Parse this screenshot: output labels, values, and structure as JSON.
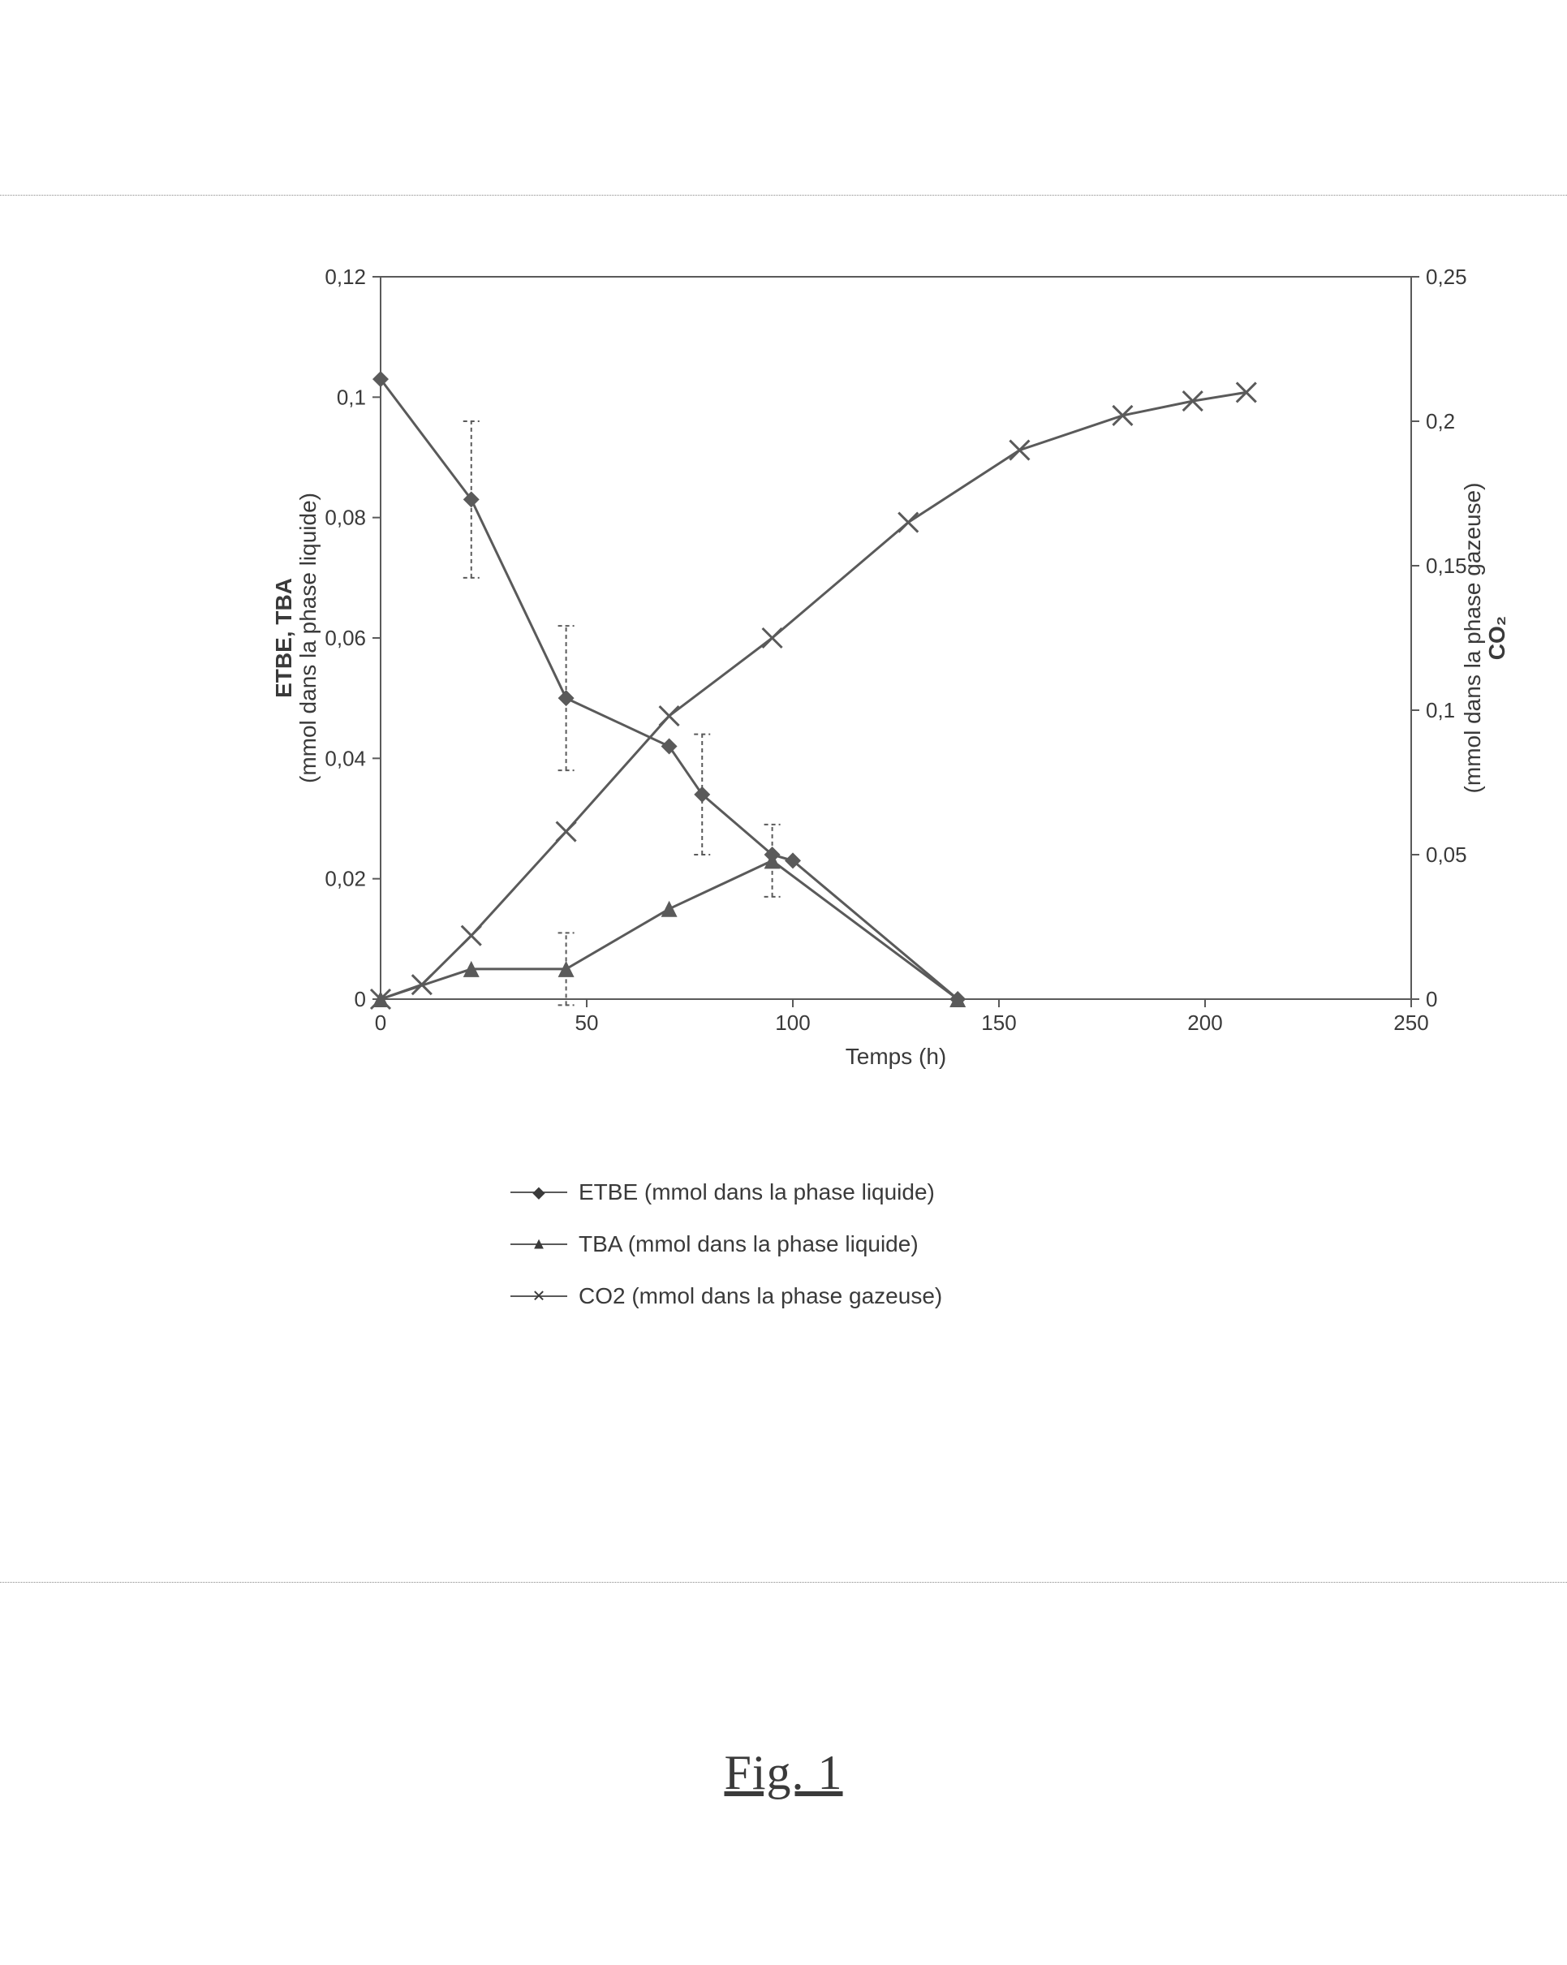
{
  "figure_caption": {
    "text": "Fig. 1"
  },
  "chart": {
    "type": "line-dual-axis",
    "background_color": "#ffffff",
    "border_style": "dotted",
    "border_color": "#888888",
    "font_family": "Arial",
    "axis_color": "#5a5a5a",
    "x": {
      "label": "Temps (h)",
      "min": 0,
      "max": 250,
      "ticks": [
        0,
        50,
        100,
        150,
        200,
        250
      ],
      "label_fontsize": 28,
      "tick_fontsize": 26
    },
    "y_left": {
      "label_line1": "ETBE, TBA",
      "label_line2": "(mmol dans la phase liquide)",
      "min": 0,
      "max": 0.12,
      "ticks": [
        0,
        0.02,
        0.04,
        0.06,
        0.08,
        0.1,
        0.12
      ],
      "tick_labels": [
        "0",
        "0,02",
        "0,04",
        "0,06",
        "0,08",
        "0,1",
        "0,12"
      ],
      "label_fontsize": 28,
      "tick_fontsize": 26
    },
    "y_right": {
      "label_line1": "CO₂",
      "label_line2": "(mmol dans la phase gazeuse)",
      "min": 0,
      "max": 0.25,
      "ticks": [
        0,
        0.05,
        0.1,
        0.15,
        0.2,
        0.25
      ],
      "tick_labels": [
        "0",
        "0,05",
        "0,1",
        "0,15",
        "0,2",
        "0,25"
      ],
      "label_fontsize": 28,
      "tick_fontsize": 26
    },
    "series": [
      {
        "id": "etbe",
        "name": "ETBE (mmol dans la phase liquide)",
        "axis": "left",
        "color": "#5a5a5a",
        "marker": "diamond",
        "marker_size": 10,
        "line_width": 3,
        "data": [
          {
            "x": 0,
            "y": 0.103
          },
          {
            "x": 22,
            "y": 0.083,
            "err": 0.013
          },
          {
            "x": 45,
            "y": 0.05,
            "err": 0.012
          },
          {
            "x": 70,
            "y": 0.042
          },
          {
            "x": 78,
            "y": 0.034,
            "err": 0.01
          },
          {
            "x": 95,
            "y": 0.024
          },
          {
            "x": 100,
            "y": 0.023
          },
          {
            "x": 140,
            "y": 0.0
          }
        ]
      },
      {
        "id": "tba",
        "name": "TBA (mmol dans la phase liquide)",
        "axis": "left",
        "color": "#5a5a5a",
        "marker": "triangle",
        "marker_size": 10,
        "line_width": 3,
        "data": [
          {
            "x": 0,
            "y": 0.0
          },
          {
            "x": 22,
            "y": 0.005
          },
          {
            "x": 45,
            "y": 0.005,
            "err": 0.006
          },
          {
            "x": 70,
            "y": 0.015
          },
          {
            "x": 95,
            "y": 0.023,
            "err": 0.006
          },
          {
            "x": 140,
            "y": 0.0
          }
        ]
      },
      {
        "id": "co2",
        "name": "CO2 (mmol dans la phase gazeuse)",
        "axis": "right",
        "color": "#5a5a5a",
        "marker": "x",
        "marker_size": 12,
        "line_width": 3,
        "data": [
          {
            "x": 0,
            "y": 0.0
          },
          {
            "x": 10,
            "y": 0.005
          },
          {
            "x": 22,
            "y": 0.022
          },
          {
            "x": 45,
            "y": 0.058
          },
          {
            "x": 70,
            "y": 0.098
          },
          {
            "x": 95,
            "y": 0.125
          },
          {
            "x": 128,
            "y": 0.165
          },
          {
            "x": 155,
            "y": 0.19
          },
          {
            "x": 180,
            "y": 0.202
          },
          {
            "x": 197,
            "y": 0.207
          },
          {
            "x": 210,
            "y": 0.21
          }
        ]
      }
    ],
    "legend": {
      "position": "right-bottom",
      "fontsize": 28,
      "items": [
        {
          "series": "etbe",
          "label": "ETBE (mmol dans la phase liquide)"
        },
        {
          "series": "tba",
          "label": "TBA (mmol dans la phase liquide)"
        },
        {
          "series": "co2",
          "label": "CO2 (mmol dans la phase gazeuse)"
        }
      ]
    }
  }
}
